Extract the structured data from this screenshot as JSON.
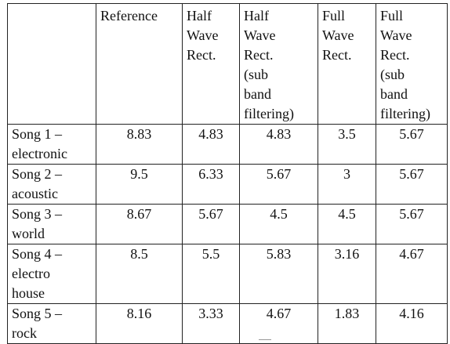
{
  "table": {
    "headers": [
      "",
      "Reference",
      "Half\nWave\nRect.",
      "Half\nWave\nRect.\n(sub\nband\nfiltering)",
      "Full\nWave\nRect.",
      "Full\nWave\nRect.\n(sub\nband\nfiltering)"
    ],
    "rows": [
      {
        "song": "Song 1 –\nelectronic",
        "values": [
          "8.83",
          "4.83",
          "4.83",
          "3.5",
          "5.67"
        ]
      },
      {
        "song": "Song 2 –\nacoustic",
        "values": [
          "9.5",
          "6.33",
          "5.67",
          "3",
          "5.67"
        ]
      },
      {
        "song": "Song 3 –\nworld",
        "values": [
          "8.67",
          "5.67",
          "4.5",
          "4.5",
          "5.67"
        ]
      },
      {
        "song": "Song 4 –\nelectro\nhouse",
        "values": [
          "8.5",
          "5.5",
          "5.83",
          "3.16",
          "4.67"
        ]
      },
      {
        "song": "Song 5 –\nrock",
        "values": [
          "8.16",
          "3.33",
          "4.67",
          "1.83",
          "4.16"
        ]
      }
    ]
  }
}
